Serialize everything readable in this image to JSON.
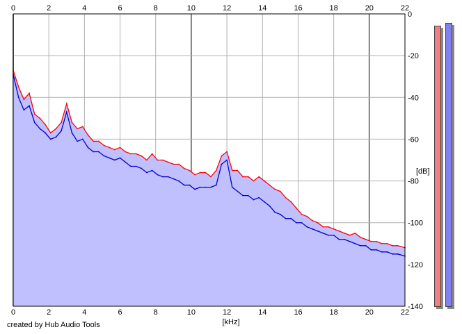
{
  "chart_data": {
    "type": "area",
    "x_unit": "[kHz]",
    "y_unit": "[dB]",
    "xlim": [
      0,
      22
    ],
    "ylim": [
      -140,
      0
    ],
    "x_ticks": [
      "0",
      "2",
      "4",
      "6",
      "8",
      "10",
      "12",
      "14",
      "16",
      "18",
      "20",
      "22"
    ],
    "y_ticks": [
      "0",
      "-20",
      "-40",
      "-60",
      "-80",
      "-100",
      "-120",
      "-140"
    ],
    "grid": true,
    "colors": {
      "left": "#ff0000",
      "right": "#0000cc",
      "fill": "#c0c0ff",
      "grid": "#b0b0b0",
      "grid_major": "#808080"
    },
    "series": [
      {
        "channel": "left",
        "x": [
          0,
          0.3,
          0.6,
          0.9,
          1.2,
          1.5,
          1.8,
          2.1,
          2.4,
          2.7,
          3.0,
          3.3,
          3.6,
          3.9,
          4.2,
          4.5,
          4.8,
          5.1,
          5.4,
          5.7,
          6.0,
          6.3,
          6.6,
          6.9,
          7.2,
          7.5,
          7.8,
          8.1,
          8.4,
          8.7,
          9.0,
          9.3,
          9.6,
          9.9,
          10.2,
          10.5,
          10.8,
          11.1,
          11.4,
          11.7,
          12.0,
          12.3,
          12.6,
          12.9,
          13.2,
          13.5,
          13.8,
          14.1,
          14.4,
          14.7,
          15.0,
          15.3,
          15.6,
          15.9,
          16.2,
          16.5,
          16.8,
          17.1,
          17.4,
          17.7,
          18.0,
          18.3,
          18.6,
          18.9,
          19.2,
          19.5,
          19.8,
          20.1,
          20.4,
          20.7,
          21.0,
          21.3,
          21.6,
          22.0
        ],
        "values": [
          -27,
          -35,
          -41,
          -38,
          -48,
          -50,
          -53,
          -57,
          -55,
          -52,
          -43,
          -52,
          -55,
          -54,
          -58,
          -61,
          -61,
          -63,
          -64,
          -65,
          -64,
          -66,
          -67,
          -67,
          -68,
          -70,
          -67,
          -70,
          -70,
          -71,
          -72,
          -72,
          -74,
          -75,
          -77,
          -76,
          -76,
          -78,
          -75,
          -68,
          -66,
          -75,
          -75,
          -78,
          -78,
          -80,
          -78,
          -80,
          -82,
          -84,
          -85,
          -88,
          -90,
          -93,
          -96,
          -97,
          -99,
          -100,
          -102,
          -102,
          -103,
          -104,
          -105,
          -106,
          -105,
          -107,
          -108,
          -109,
          -109,
          -110,
          -110,
          -111,
          -111,
          -112
        ]
      },
      {
        "channel": "right",
        "x": [
          0,
          0.3,
          0.6,
          0.9,
          1.2,
          1.5,
          1.8,
          2.1,
          2.4,
          2.7,
          3.0,
          3.3,
          3.6,
          3.9,
          4.2,
          4.5,
          4.8,
          5.1,
          5.4,
          5.7,
          6.0,
          6.3,
          6.6,
          6.9,
          7.2,
          7.5,
          7.8,
          8.1,
          8.4,
          8.7,
          9.0,
          9.3,
          9.6,
          9.9,
          10.2,
          10.5,
          10.8,
          11.1,
          11.4,
          11.7,
          12.0,
          12.3,
          12.6,
          12.9,
          13.2,
          13.5,
          13.8,
          14.1,
          14.4,
          14.7,
          15.0,
          15.3,
          15.6,
          15.9,
          16.2,
          16.5,
          16.8,
          17.1,
          17.4,
          17.7,
          18.0,
          18.3,
          18.6,
          18.9,
          19.2,
          19.5,
          19.8,
          20.1,
          20.4,
          20.7,
          21.0,
          21.3,
          21.6,
          22.0
        ],
        "values": [
          -29,
          -40,
          -46,
          -44,
          -52,
          -55,
          -57,
          -60,
          -59,
          -56,
          -47,
          -57,
          -61,
          -60,
          -64,
          -66,
          -66,
          -68,
          -69,
          -70,
          -69,
          -71,
          -73,
          -73,
          -74,
          -76,
          -75,
          -77,
          -78,
          -78,
          -79,
          -80,
          -82,
          -82,
          -84,
          -83,
          -83,
          -83,
          -82,
          -72,
          -70,
          -83,
          -85,
          -87,
          -87,
          -89,
          -88,
          -90,
          -92,
          -95,
          -96,
          -98,
          -98,
          -100,
          -100,
          -102,
          -103,
          -104,
          -105,
          -106,
          -106,
          -108,
          -108,
          -109,
          -110,
          -111,
          -111,
          -113,
          -113,
          -114,
          -114,
          -115,
          -115,
          -116
        ]
      }
    ]
  },
  "meters": {
    "left_level": 0.96,
    "right_level": 0.97,
    "left_color": "#f08080",
    "right_color": "#8080f0"
  },
  "credit": "created by Hub Audio Tools"
}
